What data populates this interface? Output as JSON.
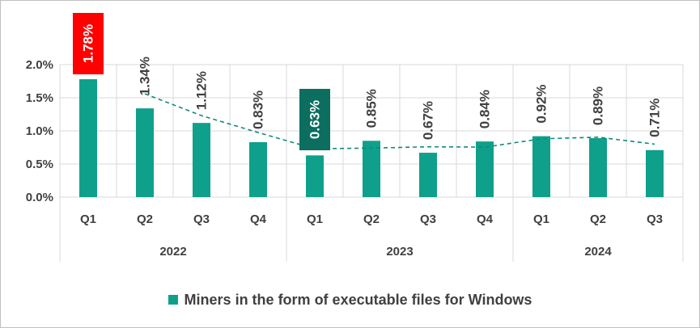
{
  "chart_data": {
    "type": "bar",
    "title": "",
    "xlabel": "",
    "ylabel": "",
    "ylim": [
      0,
      2.0
    ],
    "y_ticks": [
      "0.0%",
      "0.5%",
      "1.0%",
      "1.5%",
      "2.0%"
    ],
    "y_tick_values": [
      0,
      0.5,
      1.0,
      1.5,
      2.0
    ],
    "grid": true,
    "legend_position": "bottom",
    "bar_color": "#0fa08b",
    "trend_color": "#0f8a78",
    "highlight_max_color": "#ff0000",
    "highlight_min_color": "#0b6e5e",
    "categories": [
      "Q1",
      "Q2",
      "Q3",
      "Q4",
      "Q1",
      "Q2",
      "Q3",
      "Q4",
      "Q1",
      "Q2",
      "Q3"
    ],
    "groups": [
      {
        "label": "2022",
        "count": 4
      },
      {
        "label": "2023",
        "count": 4
      },
      {
        "label": "2024",
        "count": 3
      }
    ],
    "series": [
      {
        "name": "Miners in the form of executable files for Windows",
        "values": [
          1.78,
          1.34,
          1.12,
          0.83,
          0.63,
          0.85,
          0.67,
          0.84,
          0.92,
          0.89,
          0.71
        ],
        "labels": [
          "1.78%",
          "1.34%",
          "1.12%",
          "0.83%",
          "0.63%",
          "0.85%",
          "0.67%",
          "0.84%",
          "0.92%",
          "0.89%",
          "0.71%"
        ]
      }
    ],
    "highlight_max_index": 0,
    "highlight_min_index": 4,
    "trendline": "moving-average"
  }
}
